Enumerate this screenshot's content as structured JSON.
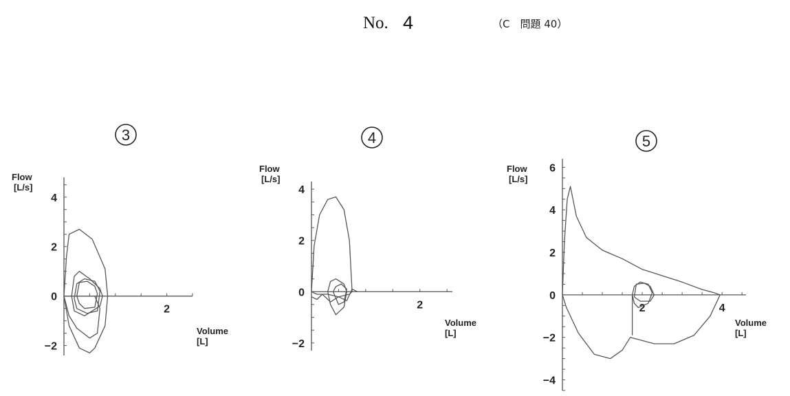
{
  "header": {
    "no_label": "No.",
    "no_number": "4",
    "question_ref": "（C　問題 40）"
  },
  "chart_data": [
    {
      "type": "line",
      "panel_label": "3",
      "ylabel": "Flow\n[L/s]",
      "xlabel": "Volume\n[L]",
      "xlim": [
        0,
        2.5
      ],
      "ylim": [
        -2.4,
        4.8
      ],
      "x_ticks": [
        2
      ],
      "y_ticks": [
        -2,
        0,
        2,
        4
      ],
      "series": [
        {
          "x": [
            0.0,
            0.05,
            0.1,
            0.3,
            0.55,
            0.8,
            0.85,
            0.8,
            0.6,
            0.5,
            0.3,
            0.1,
            0.0
          ],
          "y": [
            0.0,
            1.6,
            2.5,
            2.7,
            2.3,
            1.1,
            0.0,
            -1.2,
            -2.1,
            -2.3,
            -2.1,
            -1.2,
            0.0
          ]
        },
        {
          "x": [
            0.0,
            0.1,
            0.25,
            0.5,
            0.65,
            0.7,
            0.6,
            0.4,
            0.2,
            0.0
          ],
          "y": [
            0.0,
            -0.8,
            -1.3,
            -1.7,
            -1.5,
            -0.5,
            0.0,
            0.0,
            0.0,
            0.0
          ]
        },
        {
          "x": [
            0.15,
            0.2,
            0.3,
            0.5,
            0.7,
            0.75,
            0.7,
            0.4,
            0.2,
            0.15
          ],
          "y": [
            0.0,
            0.8,
            1.0,
            0.7,
            0.3,
            0.0,
            -0.4,
            -0.8,
            -0.6,
            0.0
          ]
        },
        {
          "x": [
            0.2,
            0.25,
            0.4,
            0.6,
            0.7,
            0.65,
            0.45,
            0.25,
            0.2
          ],
          "y": [
            -0.1,
            0.5,
            0.7,
            0.6,
            0.2,
            -0.6,
            -0.7,
            -0.5,
            -0.1
          ]
        },
        {
          "x": [
            0.25,
            0.3,
            0.45,
            0.6,
            0.65,
            0.6,
            0.4,
            0.3,
            0.25
          ],
          "y": [
            0.0,
            0.55,
            0.6,
            0.4,
            0.1,
            -0.45,
            -0.5,
            -0.3,
            0.0
          ]
        }
      ]
    },
    {
      "type": "line",
      "panel_label": "4",
      "ylabel": "Flow\n[L/s]",
      "xlabel": "Volume\n[L]",
      "xlim": [
        0,
        2.6
      ],
      "ylim": [
        -2.3,
        4.3
      ],
      "x_ticks": [
        2
      ],
      "y_ticks": [
        -2,
        0,
        2,
        4
      ],
      "series": [
        {
          "x": [
            0.0,
            0.05,
            0.15,
            0.3,
            0.45,
            0.6,
            0.7,
            0.75,
            0.7,
            0.5,
            0.3,
            0.1,
            0.0
          ],
          "y": [
            0.0,
            1.8,
            3.0,
            3.6,
            3.7,
            3.2,
            2.0,
            0.0,
            -0.1,
            -0.2,
            -0.1,
            -0.1,
            0.0
          ]
        },
        {
          "x": [
            0.3,
            0.35,
            0.45,
            0.6,
            0.65,
            0.6,
            0.45,
            0.35,
            0.3
          ],
          "y": [
            0.0,
            0.4,
            0.5,
            0.3,
            0.0,
            -0.6,
            -0.9,
            -0.5,
            0.0
          ]
        },
        {
          "x": [
            0.4,
            0.45,
            0.55,
            0.65,
            0.6,
            0.5,
            0.4
          ],
          "y": [
            0.0,
            0.2,
            0.3,
            0.1,
            -0.4,
            -0.5,
            0.0
          ]
        },
        {
          "x": [
            0.0,
            0.1,
            0.2,
            0.35,
            0.5,
            0.65,
            0.75,
            0.85
          ],
          "y": [
            -0.2,
            -0.3,
            -0.1,
            -0.4,
            -0.2,
            -0.35,
            0.1,
            0.0
          ]
        }
      ]
    },
    {
      "type": "line",
      "panel_label": "5",
      "ylabel": "Flow\n[L/s]",
      "xlabel": "Volume\n[L]",
      "xlim": [
        0,
        4.6
      ],
      "ylim": [
        -4.5,
        6.4
      ],
      "x_ticks": [
        2,
        4
      ],
      "y_ticks": [
        -4,
        -2,
        0,
        2,
        4,
        6
      ],
      "series": [
        {
          "x": [
            0.0,
            0.05,
            0.12,
            0.2,
            0.35,
            0.6,
            1.0,
            1.5,
            2.0,
            2.5,
            3.0,
            3.5,
            3.8,
            3.95
          ],
          "y": [
            0.0,
            2.5,
            4.5,
            5.1,
            3.7,
            2.7,
            2.1,
            1.7,
            1.2,
            0.9,
            0.6,
            0.25,
            0.1,
            0.0
          ]
        },
        {
          "x": [
            3.95,
            3.7,
            3.3,
            2.8,
            2.3,
            1.9,
            1.7,
            1.5,
            1.2,
            0.8,
            0.4,
            0.1,
            0.0
          ],
          "y": [
            0.0,
            -1.0,
            -1.9,
            -2.3,
            -2.3,
            -2.1,
            -2.0,
            -2.6,
            -3.0,
            -2.8,
            -1.8,
            -0.6,
            0.0
          ]
        },
        {
          "x": [
            1.75,
            1.8,
            1.95,
            2.15,
            2.25,
            2.15,
            1.9,
            1.8,
            1.75
          ],
          "y": [
            0.0,
            0.4,
            0.6,
            0.5,
            0.1,
            -0.4,
            -0.6,
            -0.4,
            0.0
          ]
        },
        {
          "x": [
            1.8,
            1.85,
            2.05,
            2.2,
            2.3,
            2.2,
            1.95,
            1.8
          ],
          "y": [
            -0.1,
            0.5,
            0.55,
            0.4,
            0.0,
            -0.3,
            -0.3,
            -0.1
          ]
        },
        {
          "x": [
            1.75,
            1.75
          ],
          "y": [
            0.0,
            -1.9
          ]
        }
      ]
    }
  ]
}
